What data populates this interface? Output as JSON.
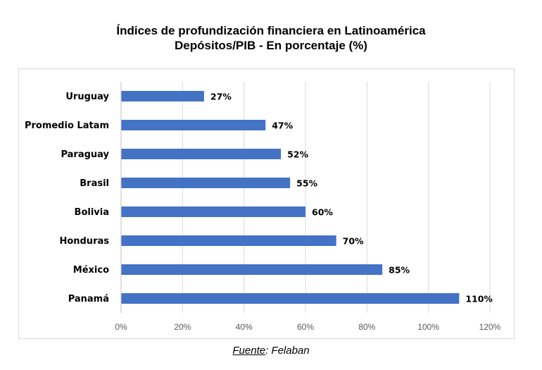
{
  "chart_data": {
    "type": "bar",
    "orientation": "horizontal",
    "title": "Índices de profundización financiera en Latinoamérica",
    "subtitle": "Depósitos/PIB - En porcentaje (%)",
    "categories": [
      "Uruguay",
      "Promedio Latam",
      "Paraguay",
      "Brasil",
      "Bolivia",
      "Honduras",
      "México",
      "Panamá"
    ],
    "values": [
      27,
      47,
      52,
      55,
      60,
      70,
      85,
      110
    ],
    "data_labels": [
      "27%",
      "47%",
      "52%",
      "55%",
      "60%",
      "70%",
      "85%",
      "110%"
    ],
    "xlim": [
      0,
      120
    ],
    "xticks": [
      "0%",
      "20%",
      "40%",
      "60%",
      "80%",
      "100%",
      "120%"
    ],
    "xlabel": "",
    "ylabel": "",
    "grid": "vertical",
    "bar_color": "#4472c4",
    "grid_color": "#d9d9d9"
  },
  "source": {
    "label": "Fuente",
    "text": ": Felaban"
  }
}
